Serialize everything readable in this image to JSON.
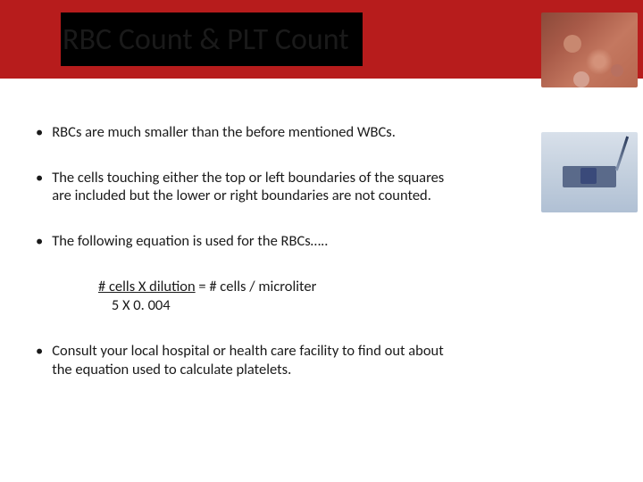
{
  "title": "RBC Count & PLT Count",
  "bullets": [
    "RBCs are much smaller than the before mentioned WBCs.",
    "The cells touching either the top or left boundaries of the squares are included but the lower or right boundaries are not counted.",
    "The following equation is used for the RBCs…..",
    "Consult your local hospital or health care facility to find out about the equation used to calculate platelets."
  ],
  "equation": {
    "numerator": "# cells X dilution",
    "result": "= # cells / microliter",
    "denominator": "    5 X 0. 004"
  },
  "title_bar_color": "#b71c1c",
  "title_accent_color": "#000000"
}
